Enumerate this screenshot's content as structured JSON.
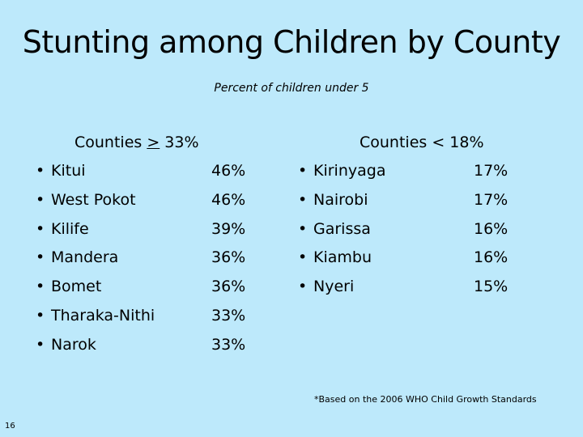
{
  "title": "Stunting among Children by County",
  "subtitle": "Percent of children under 5",
  "left_column": {
    "heading_prefix": "Counties ",
    "heading_operator": ">",
    "heading_value": " 33%",
    "items": [
      {
        "county": "Kitui",
        "percent": "46%"
      },
      {
        "county": "West Pokot",
        "percent": "46%"
      },
      {
        "county": "Kilife",
        "percent": "39%"
      },
      {
        "county": "Mandera",
        "percent": "36%"
      },
      {
        "county": "Bomet",
        "percent": "36%"
      },
      {
        "county": "Tharaka-Nithi",
        "percent": "33%"
      },
      {
        "county": "Narok",
        "percent": "33%"
      }
    ]
  },
  "right_column": {
    "heading": "Counties < 18%",
    "items": [
      {
        "county": "Kirinyaga",
        "percent": "17%"
      },
      {
        "county": "Nairobi",
        "percent": "17%"
      },
      {
        "county": "Garissa",
        "percent": "16%"
      },
      {
        "county": "Kiambu",
        "percent": "16%"
      },
      {
        "county": "Nyeri",
        "percent": "15%"
      }
    ]
  },
  "bullet_glyph": "•",
  "footnote": "*Based on the 2006 WHO Child Growth Standards",
  "slide_number": "16"
}
